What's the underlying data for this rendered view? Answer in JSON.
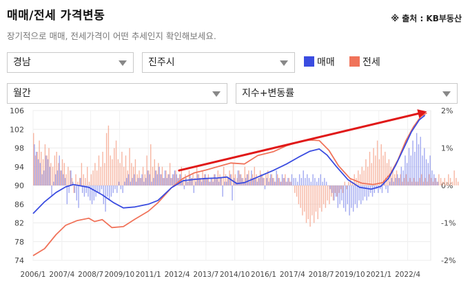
{
  "header": {
    "title": "매매/전세 가격변동",
    "source": "※ 출처 : KB부동산",
    "subtitle": "장기적으로 매매, 전세가격이 어떤 추세인지 확인해보세요."
  },
  "controls": {
    "region": "경남",
    "city": "진주시",
    "period": "월간",
    "metric": "지수+변동률"
  },
  "colors": {
    "sale": "#3a4ce0",
    "jeonse": "#f0735a",
    "sale_bar": "#8f99ee",
    "jeonse_bar": "#f6a890",
    "annotation_arrow": "#e01818"
  },
  "chart_data": {
    "type": "line",
    "legend": [
      "매매",
      "전세"
    ],
    "legend_position": "top-right",
    "grid": true,
    "x_tick_labels": [
      "2006/1",
      "2007/4",
      "2008/7",
      "2009/10",
      "2011/1",
      "2012/4",
      "2013/7",
      "2014/10",
      "2016/1",
      "2017/4",
      "2018/7",
      "2019/10",
      "2021/1",
      "2022/4"
    ],
    "x_range": [
      "2006/1",
      "2023/4"
    ],
    "y_left": {
      "ticks": [
        74,
        78,
        82,
        86,
        90,
        94,
        98,
        102,
        106
      ],
      "range": [
        74,
        106
      ],
      "label": ""
    },
    "y_right": {
      "ticks": [
        "-2%",
        "-1%",
        "0%",
        "1%",
        "2%"
      ],
      "range": [
        -2,
        2
      ],
      "label": ""
    },
    "series": [
      {
        "name": "매매",
        "axis": "left",
        "points": [
          [
            "2006/1",
            84
          ],
          [
            "2006/7",
            86.5
          ],
          [
            "2007/1",
            88.5
          ],
          [
            "2007/6",
            89.7
          ],
          [
            "2007/10",
            90.2
          ],
          [
            "2008/6",
            89.6
          ],
          [
            "2009/1",
            88
          ],
          [
            "2009/7",
            86.3
          ],
          [
            "2009/12",
            85.2
          ],
          [
            "2010/6",
            85.4
          ],
          [
            "2011/1",
            86
          ],
          [
            "2011/6",
            86.8
          ],
          [
            "2012/1",
            89.5
          ],
          [
            "2012/7",
            91
          ],
          [
            "2013/1",
            91.3
          ],
          [
            "2013/7",
            91.5
          ],
          [
            "2014/1",
            91.6
          ],
          [
            "2014/6",
            91.8
          ],
          [
            "2014/11",
            90.4
          ],
          [
            "2015/3",
            90.6
          ],
          [
            "2015/10",
            91.8
          ],
          [
            "2016/6",
            93.2
          ],
          [
            "2017/1",
            94.6
          ],
          [
            "2017/7",
            96
          ],
          [
            "2018/1",
            97.3
          ],
          [
            "2018/6",
            97.8
          ],
          [
            "2018/10",
            96.5
          ],
          [
            "2019/3",
            94
          ],
          [
            "2019/9",
            91.2
          ],
          [
            "2020/3",
            89.6
          ],
          [
            "2020/9",
            89.2
          ],
          [
            "2021/2",
            89.8
          ],
          [
            "2021/6",
            91.5
          ],
          [
            "2021/10",
            94.5
          ],
          [
            "2022/2",
            98
          ],
          [
            "2022/6",
            101.5
          ],
          [
            "2022/10",
            104
          ],
          [
            "2023/1",
            105
          ]
        ]
      },
      {
        "name": "전세",
        "axis": "left",
        "points": [
          [
            "2006/1",
            75
          ],
          [
            "2006/7",
            76.5
          ],
          [
            "2007/1",
            79.5
          ],
          [
            "2007/6",
            81.5
          ],
          [
            "2007/12",
            82.5
          ],
          [
            "2008/6",
            83
          ],
          [
            "2008/9",
            82.3
          ],
          [
            "2009/1",
            82.7
          ],
          [
            "2009/6",
            81
          ],
          [
            "2009/12",
            81.2
          ],
          [
            "2010/6",
            82.8
          ],
          [
            "2011/1",
            84.5
          ],
          [
            "2011/6",
            86.3
          ],
          [
            "2012/1",
            89.5
          ],
          [
            "2012/7",
            91.5
          ],
          [
            "2013/1",
            92.7
          ],
          [
            "2013/7",
            93.3
          ],
          [
            "2014/1",
            94
          ],
          [
            "2014/8",
            94.8
          ],
          [
            "2015/3",
            94.6
          ],
          [
            "2015/10",
            96.4
          ],
          [
            "2016/6",
            97.2
          ],
          [
            "2017/1",
            98.5
          ],
          [
            "2017/7",
            99.3
          ],
          [
            "2018/1",
            99.7
          ],
          [
            "2018/6",
            99.6
          ],
          [
            "2018/11",
            97.5
          ],
          [
            "2019/4",
            94.2
          ],
          [
            "2019/10",
            91.5
          ],
          [
            "2020/4",
            90.5
          ],
          [
            "2020/10",
            90.2
          ],
          [
            "2021/3",
            90.6
          ],
          [
            "2021/7",
            92.5
          ],
          [
            "2021/11",
            95.5
          ],
          [
            "2022/3",
            99.5
          ],
          [
            "2022/7",
            102.5
          ],
          [
            "2022/11",
            104.8
          ],
          [
            "2023/2",
            105.5
          ]
        ]
      },
      {
        "name": "매매 변동률",
        "type": "bar",
        "axis": "right",
        "values": [
          1.1,
          0.9,
          0.7,
          0.6,
          0.3,
          0.4,
          0.8,
          0.7,
          0.5,
          -0.3,
          0.1,
          0.3,
          0.4,
          0.8,
          0.4,
          0.3,
          0.2,
          -0.5,
          -0.2,
          0.4,
          0.1,
          -0.2,
          -0.4,
          -0.6,
          0.2,
          -0.2,
          -0.3,
          -0.2,
          -0.3,
          -0.4,
          -0.5,
          -0.4,
          -0.3,
          -0.2,
          -0.2,
          -0.1,
          -0.5,
          -0.7,
          -0.3,
          -0.4,
          -0.3,
          -0.2,
          -0.1,
          -0.2,
          0.1,
          -0.1,
          -0.2,
          0.1,
          0.2,
          0.3,
          0.1,
          0.2,
          0.3,
          0.1,
          0.2,
          0.2,
          0.3,
          0.1,
          0.2,
          0.4,
          0.3,
          0.1,
          0.2,
          0.4,
          0.3,
          0.5,
          0.3,
          0.2,
          0.4,
          0.2,
          0.3,
          0.2,
          0.3,
          0.4,
          0.3,
          0.2,
          0.3,
          0.1,
          -0.1,
          0.2,
          0.1,
          0.3,
          0.2,
          -0.2,
          0.1,
          0.3,
          0.2,
          0.1,
          0.2,
          0.3,
          0.2,
          0.1,
          0.2,
          0.1,
          0.3,
          0.2,
          0.1,
          0.2,
          -0.3,
          0.1,
          0.1,
          0.2,
          0.3,
          -0.4,
          0.2,
          0.1,
          0.4,
          0.3,
          0.2,
          0.1,
          0.2,
          0.3,
          0.1,
          0.4,
          0.2,
          0.2,
          0.1,
          0.2,
          0.3,
          0.2,
          -0.1,
          0.2,
          0.1,
          0.3,
          0.2,
          0.1,
          0.4,
          0.2,
          0.1,
          0.3,
          0.2,
          0.1,
          0.2,
          0.1,
          0.3,
          0.2,
          0.2,
          0.1,
          0.3,
          0.2,
          0.4,
          0.2,
          0.3,
          0.2,
          0.1,
          0.3,
          0.2,
          0.1,
          0.2,
          0.3,
          0.1,
          0.2,
          0.1,
          0.0,
          -0.1,
          -0.2,
          -0.4,
          -0.3,
          -0.6,
          -0.5,
          -0.4,
          -0.6,
          -0.7,
          -0.5,
          -0.8,
          -0.6,
          -0.7,
          -0.5,
          -0.6,
          -0.4,
          -0.5,
          -0.4,
          -0.3,
          -0.4,
          -0.3,
          -0.2,
          -0.3,
          -0.2,
          -0.1,
          -0.2,
          -0.1,
          -0.2,
          0.1,
          -0.1,
          -0.2,
          0.1,
          0.2,
          0.1,
          0.2,
          0.3,
          0.2,
          0.5,
          0.4,
          0.8,
          0.6,
          1.0,
          0.8,
          1.2,
          0.9,
          1.4,
          1.1,
          1.3,
          0.8,
          1.0,
          0.7,
          0.6,
          0.8,
          0.4,
          0.3,
          0.2,
          0.1
        ],
        "x_start": "2006/1",
        "interval": "monthly"
      },
      {
        "name": "전세 변동률",
        "type": "bar",
        "axis": "right",
        "values": [
          1.4,
          0.8,
          0.9,
          1.2,
          0.9,
          0.7,
          1.1,
          0.8,
          1.0,
          0.6,
          0.5,
          0.8,
          0.9,
          0.6,
          0.4,
          0.7,
          0.6,
          0.3,
          0.5,
          0.4,
          0.2,
          -0.2,
          0.3,
          0.1,
          0.2,
          0.6,
          0.3,
          0.2,
          0.5,
          0.1,
          0.3,
          0.4,
          0.6,
          0.4,
          0.8,
          0.5,
          0.9,
          0.6,
          1.4,
          1.6,
          0.8,
          0.7,
          1.0,
          1.2,
          0.7,
          0.6,
          0.9,
          0.5,
          0.8,
          0.4,
          1.0,
          0.6,
          0.5,
          0.7,
          0.3,
          0.4,
          0.2,
          0.5,
          0.3,
          0.8,
          0.4,
          1.1,
          0.5,
          0.7,
          0.4,
          0.6,
          0.3,
          0.5,
          0.2,
          0.4,
          0.3,
          0.6,
          0.2,
          0.3,
          0.4,
          0.2,
          0.3,
          0.5,
          0.2,
          0.3,
          0.1,
          0.4,
          0.2,
          0.3,
          0.2,
          0.5,
          0.3,
          0.2,
          0.4,
          0.3,
          0.2,
          0.3,
          0.1,
          0.2,
          0.3,
          0.2,
          0.4,
          0.3,
          0.2,
          0.5,
          0.3,
          0.2,
          0.4,
          0.3,
          0.6,
          0.3,
          0.2,
          0.4,
          0.3,
          0.2,
          0.5,
          0.3,
          0.4,
          0.2,
          0.3,
          0.5,
          0.3,
          0.2,
          0.4,
          0.3,
          0.2,
          0.3,
          0.4,
          0.2,
          0.3,
          0.2,
          0.1,
          0.3,
          0.2,
          0.1,
          0.2,
          0.3,
          0.1,
          0.2,
          0.1,
          0.0,
          -0.2,
          -0.3,
          -0.5,
          -0.6,
          -0.8,
          -0.7,
          -1.0,
          -0.9,
          -1.1,
          -0.8,
          -1.0,
          -0.7,
          -0.9,
          -0.6,
          -0.7,
          -0.5,
          -0.6,
          -0.4,
          -0.5,
          -0.3,
          -0.4,
          -0.2,
          -0.3,
          -0.2,
          -0.1,
          -0.2,
          0.1,
          -0.1,
          0.1,
          0.2,
          0.1,
          0.3,
          0.2,
          0.4,
          0.3,
          0.5,
          0.4,
          0.7,
          0.5,
          0.9,
          0.6,
          1.0,
          0.8,
          1.2,
          0.7,
          1.1,
          0.8,
          0.9,
          0.6,
          0.7,
          0.5,
          0.4,
          0.3,
          0.4,
          0.2,
          0.3,
          0.1,
          0.2,
          0.3,
          0.1,
          0.2,
          0.1,
          0.2,
          0.1,
          0.1,
          0.2,
          0.3,
          0.1,
          0.2,
          0.1,
          0.3,
          0.2,
          0.1,
          0.2,
          0.1,
          0.3,
          0.2,
          0.1,
          0.2,
          0.1,
          0.3,
          0.2,
          0.1,
          0.4,
          0.2,
          0.1
        ],
        "x_start": "2006/1",
        "interval": "monthly"
      }
    ],
    "annotations": [
      {
        "type": "arrow",
        "from": [
          "2012/5",
          93.2
        ],
        "to": [
          "2023/2",
          105.8
        ],
        "color": "#e01818"
      }
    ]
  }
}
